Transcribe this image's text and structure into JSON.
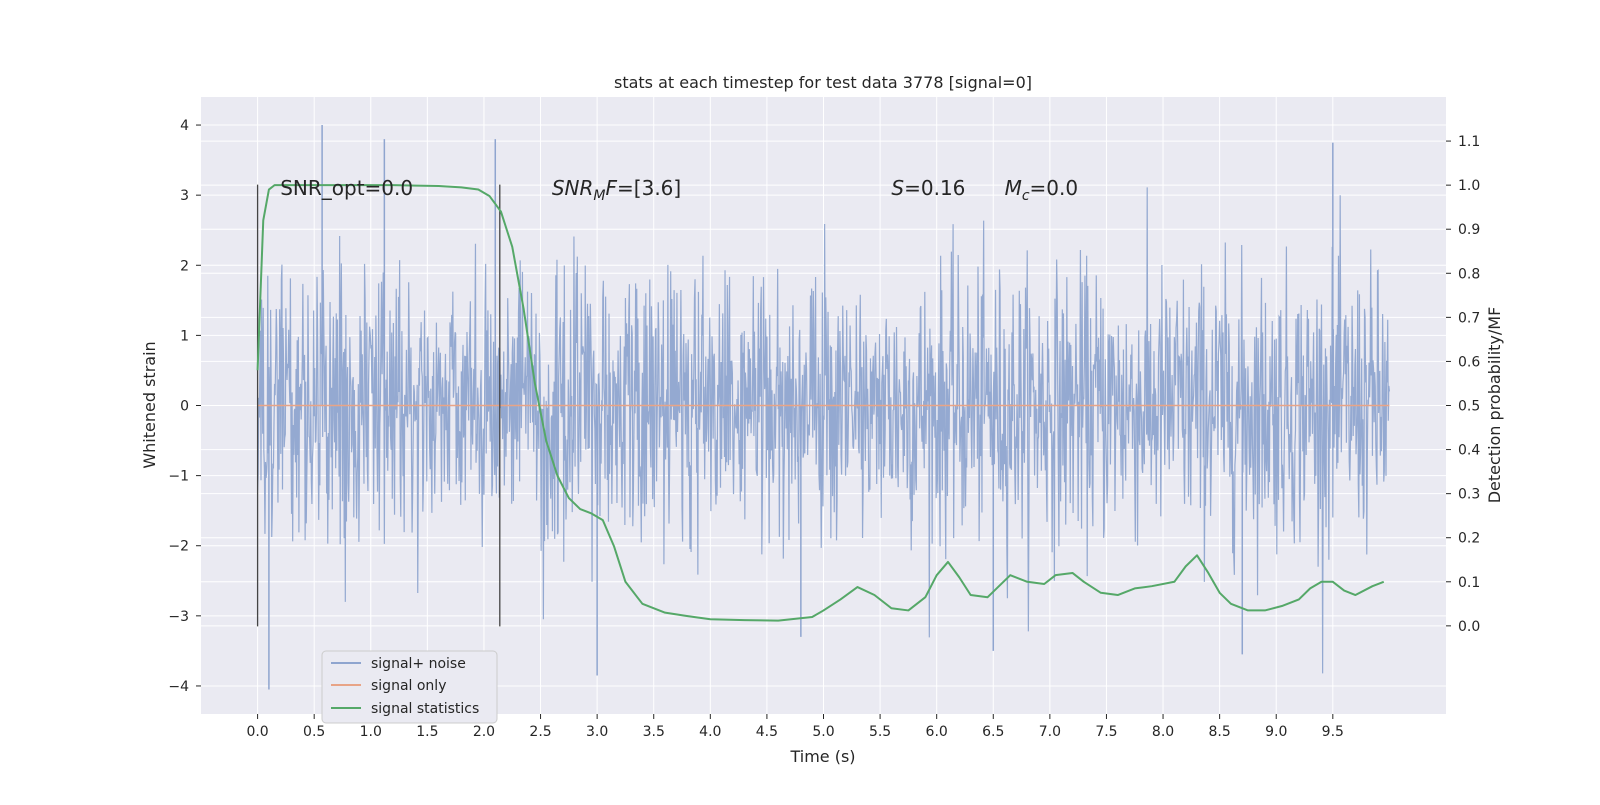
{
  "chart_data": {
    "type": "line",
    "title": "stats at each timestep for test data 3778 [signal=0]",
    "xlabel": "Time (s)",
    "ylabel_left": "Whitened strain",
    "ylabel_right": "Detection probability/MF",
    "x_ticks": [
      "0.0",
      "0.5",
      "1.0",
      "1.5",
      "2.0",
      "2.5",
      "3.0",
      "3.5",
      "4.0",
      "4.5",
      "5.0",
      "5.5",
      "6.0",
      "6.5",
      "7.0",
      "7.5",
      "8.0",
      "8.5",
      "9.0",
      "9.5"
    ],
    "y_left_ticks": [
      "−4",
      "−3",
      "−2",
      "−1",
      "0",
      "1",
      "2",
      "3",
      "4"
    ],
    "y_right_ticks": [
      "0.0",
      "0.1",
      "0.2",
      "0.3",
      "0.4",
      "0.5",
      "0.6",
      "0.7",
      "0.8",
      "0.9",
      "1.0",
      "1.1"
    ],
    "xlim": [
      -0.5,
      10.5
    ],
    "ylim_left": [
      -4.4,
      4.4
    ],
    "ylim_right": [
      -0.2,
      1.2
    ],
    "grid": true,
    "legend_position": "lower-left",
    "annotations": [
      {
        "x": 0.2,
        "y": 3.1,
        "text": "SNR_opt=0.0"
      },
      {
        "x": 2.6,
        "y": 3.1,
        "base": "SNR",
        "sub": "M",
        "rest": "F=[3.6]"
      },
      {
        "x": 5.6,
        "y": 3.1,
        "base": "S",
        "rest": "=0.16"
      },
      {
        "x": 6.6,
        "y": 3.1,
        "base": "M",
        "sub": "c",
        "rest": "=0.0"
      }
    ],
    "vertical_lines": [
      {
        "x": 0.0,
        "y_range": [
          -3.15,
          3.15
        ]
      },
      {
        "x": 2.14,
        "y_range": [
          -3.15,
          3.15
        ]
      }
    ],
    "series": [
      {
        "name": "signal+ noise",
        "axis": "left",
        "color": "#8fa5cf",
        "kind": "noise",
        "x_range": [
          0.0,
          10.0
        ],
        "envelope_typical": [
          -1.8,
          1.9
        ],
        "extremes": [
          -4.05,
          4.0
        ]
      },
      {
        "name": "signal only",
        "axis": "left",
        "color": "#e8a487",
        "x": [
          0.0,
          10.0
        ],
        "values": [
          0.0,
          0.0
        ]
      },
      {
        "name": "signal statistics",
        "axis": "right",
        "color": "#55a868",
        "x": [
          0.0,
          0.05,
          0.1,
          0.15,
          0.2,
          0.4,
          0.6,
          0.8,
          1.0,
          1.2,
          1.4,
          1.6,
          1.8,
          1.95,
          2.05,
          2.15,
          2.25,
          2.35,
          2.45,
          2.55,
          2.65,
          2.75,
          2.85,
          2.95,
          3.05,
          3.15,
          3.25,
          3.4,
          3.6,
          3.8,
          4.0,
          4.3,
          4.6,
          4.9,
          5.0,
          5.15,
          5.3,
          5.45,
          5.6,
          5.75,
          5.9,
          6.0,
          6.1,
          6.2,
          6.3,
          6.45,
          6.55,
          6.65,
          6.8,
          6.95,
          7.05,
          7.2,
          7.3,
          7.45,
          7.6,
          7.75,
          7.9,
          8.1,
          8.2,
          8.3,
          8.4,
          8.5,
          8.6,
          8.75,
          8.9,
          9.05,
          9.2,
          9.3,
          9.4,
          9.5,
          9.6,
          9.7,
          9.85,
          9.95
        ],
        "values": [
          0.58,
          0.92,
          0.99,
          1.0,
          1.0,
          1.0,
          1.0,
          1.0,
          1.0,
          1.0,
          0.999,
          0.998,
          0.995,
          0.99,
          0.975,
          0.94,
          0.86,
          0.72,
          0.55,
          0.42,
          0.34,
          0.29,
          0.265,
          0.255,
          0.24,
          0.18,
          0.1,
          0.05,
          0.03,
          0.022,
          0.015,
          0.013,
          0.012,
          0.02,
          0.035,
          0.06,
          0.088,
          0.07,
          0.04,
          0.035,
          0.065,
          0.115,
          0.145,
          0.11,
          0.07,
          0.065,
          0.09,
          0.115,
          0.1,
          0.095,
          0.115,
          0.12,
          0.1,
          0.075,
          0.07,
          0.085,
          0.09,
          0.1,
          0.135,
          0.16,
          0.12,
          0.075,
          0.05,
          0.035,
          0.035,
          0.045,
          0.06,
          0.085,
          0.1,
          0.1,
          0.08,
          0.07,
          0.09,
          0.1
        ]
      }
    ]
  }
}
